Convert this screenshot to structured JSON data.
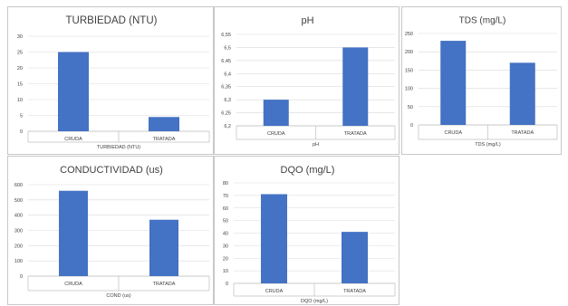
{
  "chart_data": [
    {
      "type": "bar",
      "title": "TURBIEDAD (NTU)",
      "xlabel": "TURBIEDAD (NTU)",
      "categories": [
        "CRUDA",
        "TRATADA"
      ],
      "values": [
        25,
        4.5
      ],
      "ylim": [
        0,
        30
      ],
      "yticks": [
        "0",
        "5",
        "10",
        "15",
        "20",
        "25",
        "30"
      ],
      "grid": true,
      "color": "#4472c4"
    },
    {
      "type": "bar",
      "title": "pH",
      "xlabel": "pH",
      "categories": [
        "CRUDA",
        "TRATADA"
      ],
      "values": [
        6.3,
        6.5
      ],
      "ylim": [
        6.2,
        6.55
      ],
      "yticks": [
        "6,2",
        "6,25",
        "6,3",
        "6,35",
        "6,4",
        "6,45",
        "6,5",
        "6,55"
      ],
      "grid": true,
      "color": "#4472c4"
    },
    {
      "type": "bar",
      "title": "TDS (mg/L)",
      "xlabel": "TDS (mg/L)",
      "categories": [
        "CRUDA",
        "TRATADA"
      ],
      "values": [
        230,
        170
      ],
      "ylim": [
        0,
        250
      ],
      "yticks": [
        "0",
        "50",
        "100",
        "150",
        "200",
        "250"
      ],
      "grid": true,
      "color": "#4472c4"
    },
    {
      "type": "bar",
      "title": "CONDUCTIVIDAD (us)",
      "xlabel": "COND (us)",
      "categories": [
        "CRUDA",
        "TRATADA"
      ],
      "values": [
        560,
        370
      ],
      "ylim": [
        0,
        600
      ],
      "yticks": [
        "0",
        "100",
        "200",
        "300",
        "400",
        "500",
        "600"
      ],
      "grid": true,
      "color": "#4472c4"
    },
    {
      "type": "bar",
      "title": "DQO (mg/L)",
      "xlabel": "DQO (mg/L)",
      "categories": [
        "CRUDA",
        "TRATADA"
      ],
      "values": [
        71,
        41
      ],
      "ylim": [
        0,
        80
      ],
      "yticks": [
        "0",
        "10",
        "20",
        "30",
        "40",
        "50",
        "60",
        "70",
        "80"
      ],
      "grid": true,
      "color": "#4472c4"
    }
  ]
}
